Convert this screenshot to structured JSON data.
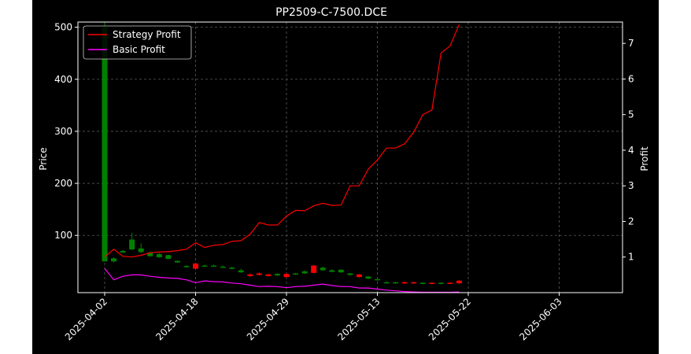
{
  "chart_data": {
    "type": "candlestick+line",
    "title": "PP2509-C-7500.DCE",
    "xlabel": "",
    "ylabel_left": "Price",
    "ylabel_right": "Profit",
    "ylim_left": [
      -10,
      510
    ],
    "ylim_right": [
      0.0,
      7.6
    ],
    "yticks_left": [
      100,
      200,
      300,
      400,
      500
    ],
    "yticks_right": [
      1,
      2,
      3,
      4,
      5,
      6,
      7
    ],
    "xtick_labels": [
      {
        "index": 0,
        "label": "2025-04-02"
      },
      {
        "index": 10,
        "label": "2025-04-18"
      },
      {
        "index": 20,
        "label": "2025-04-29"
      },
      {
        "index": 30,
        "label": "2025-05-13"
      },
      {
        "index": 40,
        "label": "2025-05-22"
      },
      {
        "index": 50,
        "label": "2025-06-03"
      }
    ],
    "grid": true,
    "legend_position": "top-left",
    "colors": {
      "background": "#000000",
      "axes": "#ffffff",
      "grid": "#5a5a5a",
      "candle_down": "#008000",
      "candle_up": "#ff0000",
      "strategy_profit": "#ff0000",
      "basic_profit": "#ff00ff"
    },
    "candles": [
      {
        "open": 500,
        "high": 510,
        "low": 50,
        "close": 50
      },
      {
        "open": 56,
        "high": 58,
        "low": 48,
        "close": 50
      },
      {
        "open": 70,
        "high": 72,
        "low": 66,
        "close": 67
      },
      {
        "open": 92,
        "high": 105,
        "low": 72,
        "close": 73
      },
      {
        "open": 75,
        "high": 85,
        "low": 66,
        "close": 68
      },
      {
        "open": 67,
        "high": 69,
        "low": 59,
        "close": 60
      },
      {
        "open": 64,
        "high": 66,
        "low": 57,
        "close": 58
      },
      {
        "open": 62,
        "high": 63,
        "low": 54,
        "close": 55
      },
      {
        "open": 51,
        "high": 52,
        "low": 47,
        "close": 48
      },
      {
        "open": 41,
        "high": 43,
        "low": 38,
        "close": 39
      },
      {
        "open": 36,
        "high": 46,
        "low": 35,
        "close": 46
      },
      {
        "open": 42,
        "high": 44,
        "low": 40,
        "close": 41
      },
      {
        "open": 42,
        "high": 44,
        "low": 40,
        "close": 41
      },
      {
        "open": 40,
        "high": 42,
        "low": 38,
        "close": 39
      },
      {
        "open": 38,
        "high": 40,
        "low": 35,
        "close": 36
      },
      {
        "open": 33,
        "high": 36,
        "low": 28,
        "close": 29
      },
      {
        "open": 22,
        "high": 27,
        "low": 20,
        "close": 25
      },
      {
        "open": 24,
        "high": 29,
        "low": 23,
        "close": 27
      },
      {
        "open": 22,
        "high": 26,
        "low": 21,
        "close": 25
      },
      {
        "open": 26,
        "high": 27,
        "low": 22,
        "close": 23
      },
      {
        "open": 20,
        "high": 27,
        "low": 19,
        "close": 26
      },
      {
        "open": 27,
        "high": 28,
        "low": 24,
        "close": 25
      },
      {
        "open": 31,
        "high": 33,
        "low": 26,
        "close": 27
      },
      {
        "open": 28,
        "high": 43,
        "low": 27,
        "close": 42
      },
      {
        "open": 38,
        "high": 40,
        "low": 32,
        "close": 33
      },
      {
        "open": 33,
        "high": 35,
        "low": 29,
        "close": 30
      },
      {
        "open": 34,
        "high": 35,
        "low": 28,
        "close": 29
      },
      {
        "open": 27,
        "high": 28,
        "low": 23,
        "close": 24
      },
      {
        "open": 20,
        "high": 26,
        "low": 19,
        "close": 25
      },
      {
        "open": 21,
        "high": 22,
        "low": 16,
        "close": 17
      },
      {
        "open": 16,
        "high": 17,
        "low": 13,
        "close": 14
      },
      {
        "open": 10,
        "high": 12,
        "low": 8,
        "close": 9
      },
      {
        "open": 10,
        "high": 11,
        "low": 7,
        "close": 8
      },
      {
        "open": 8,
        "high": 11,
        "low": 7,
        "close": 10
      },
      {
        "open": 8,
        "high": 11,
        "low": 7,
        "close": 10
      },
      {
        "open": 9,
        "high": 10,
        "low": 6,
        "close": 7
      },
      {
        "open": 7,
        "high": 10,
        "low": 6,
        "close": 9
      },
      {
        "open": 9,
        "high": 10,
        "low": 6,
        "close": 7
      },
      {
        "open": 8,
        "high": 10,
        "low": 7,
        "close": 9
      },
      {
        "open": 8,
        "high": 14,
        "low": 7,
        "close": 13
      }
    ],
    "series": [
      {
        "name": "Strategy Profit",
        "values": [
          1.0,
          1.22,
          1.02,
          1.0,
          1.05,
          1.12,
          1.14,
          1.15,
          1.18,
          1.22,
          1.4,
          1.27,
          1.33,
          1.35,
          1.44,
          1.46,
          1.64,
          1.97,
          1.9,
          1.9,
          2.15,
          2.31,
          2.3,
          2.44,
          2.51,
          2.45,
          2.46,
          3.0,
          3.0,
          3.47,
          3.72,
          4.06,
          4.06,
          4.18,
          4.51,
          5.0,
          5.13,
          6.73,
          6.93,
          7.53
        ]
      },
      {
        "name": "Basic Profit",
        "values": [
          0.68,
          0.36,
          0.46,
          0.5,
          0.5,
          0.46,
          0.43,
          0.41,
          0.4,
          0.36,
          0.28,
          0.33,
          0.31,
          0.3,
          0.27,
          0.25,
          0.21,
          0.17,
          0.18,
          0.17,
          0.14,
          0.17,
          0.18,
          0.21,
          0.24,
          0.2,
          0.17,
          0.17,
          0.13,
          0.13,
          0.1,
          0.07,
          0.05,
          0.03,
          0.02,
          0.01,
          0.01,
          0.01,
          0.01,
          0.02
        ]
      }
    ]
  }
}
